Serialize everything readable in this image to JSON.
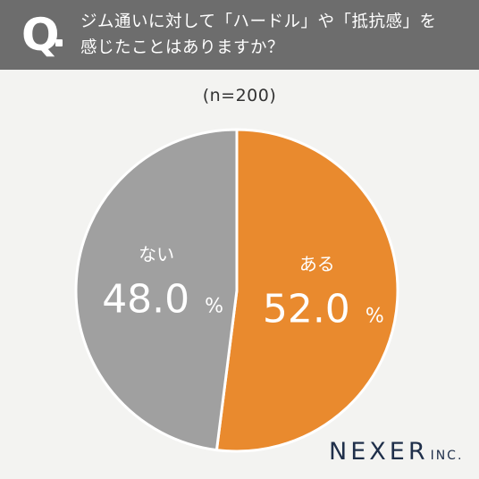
{
  "header": {
    "q_label": "Q",
    "question_line1": "ジム通いに対して「ハードル」や「抵抗感」を",
    "question_line2": "感じたことはありますか？"
  },
  "sample_label": "(n=200)",
  "logo": {
    "main": "NEXER",
    "suffix": "INC."
  },
  "colors": {
    "header_bg": "#6d6d6d",
    "yes": "#e98a2e",
    "no": "#a0a0a0",
    "background": "#f3f3f1"
  },
  "chart_data": {
    "type": "pie",
    "categories": [
      "ある",
      "ない"
    ],
    "values": [
      52.0,
      48.0
    ],
    "value_labels": [
      "52.0",
      "48.0"
    ],
    "unit": "%",
    "start": "top, clockwise",
    "colors": [
      "#e98a2e",
      "#a0a0a0"
    ]
  }
}
